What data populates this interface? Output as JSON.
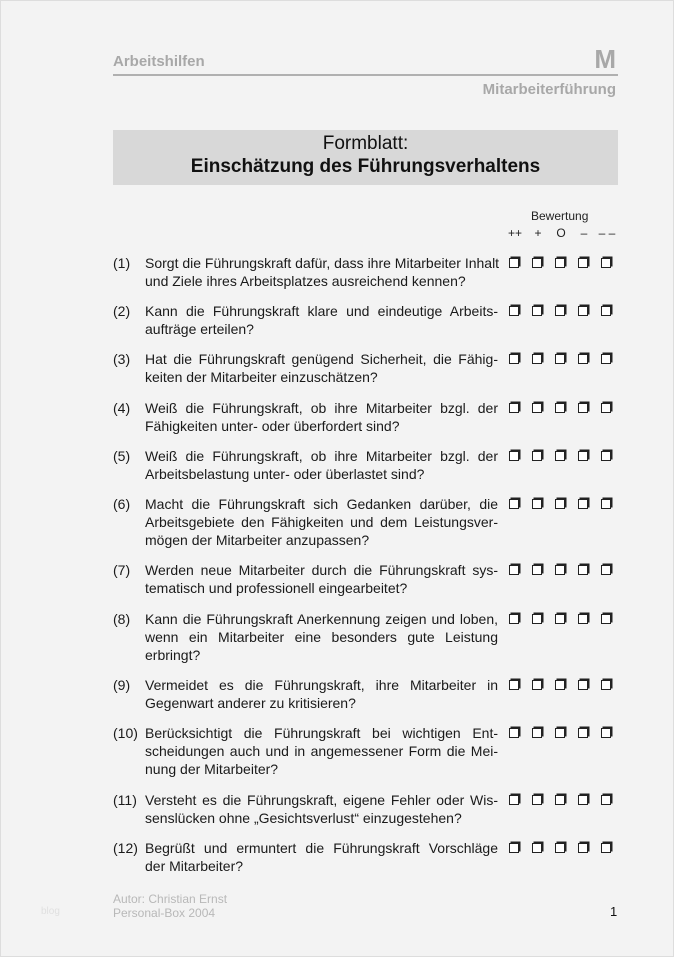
{
  "header": {
    "section": "Arbeitshilfen",
    "letter": "M",
    "subsection": "Mitarbeiterführung"
  },
  "title": {
    "line1": "Formblatt:",
    "line2": "Einschätzung des Führungsverhaltens"
  },
  "rating": {
    "label": "Bewertung",
    "scale": [
      "++",
      "+",
      "O",
      "–",
      "– –"
    ]
  },
  "questions": [
    {
      "num": "(1)",
      "lines": [
        "Sorgt die Führungskraft dafür, dass ihre Mitarbeiter Inhalt",
        "und Ziele ihres Arbeitsplatzes ausreichend kennen?"
      ]
    },
    {
      "num": "(2)",
      "lines": [
        "Kann die Führungskraft klare und eindeutige Arbeits-",
        "aufträge erteilen?"
      ]
    },
    {
      "num": "(3)",
      "lines": [
        "Hat die Führungskraft genügend Sicherheit, die Fähig-",
        "keiten der Mitarbeiter einzuschätzen?"
      ]
    },
    {
      "num": "(4)",
      "lines": [
        "Weiß die Führungskraft, ob ihre Mitarbeiter bzgl. der",
        "Fähigkeiten unter- oder überfordert sind?"
      ]
    },
    {
      "num": "(5)",
      "lines": [
        "Weiß die Führungskraft, ob ihre Mitarbeiter bzgl. der",
        "Arbeitsbelastung unter- oder überlastet sind?"
      ]
    },
    {
      "num": "(6)",
      "lines": [
        "Macht die Führungskraft sich Gedanken darüber, die",
        "Arbeitsgebiete den Fähigkeiten und dem Leistungsver-",
        "mögen der Mitarbeiter anzupassen?"
      ]
    },
    {
      "num": "(7)",
      "lines": [
        "Werden neue Mitarbeiter durch die Führungskraft sys-",
        "tematisch und professionell eingearbeitet?"
      ]
    },
    {
      "num": "(8)",
      "lines": [
        "Kann die Führungskraft Anerkennung zeigen und loben,",
        "wenn ein Mitarbeiter eine besonders gute Leistung",
        "erbringt?"
      ]
    },
    {
      "num": "(9)",
      "lines": [
        "Vermeidet es die Führungskraft, ihre Mitarbeiter in",
        "Gegenwart anderer zu kritisieren?"
      ]
    },
    {
      "num": "(10)",
      "lines": [
        "Berücksichtigt die Führungskraft bei wichtigen Ent-",
        "scheidungen auch und in angemessener Form die Mei-",
        "nung der Mitarbeiter?"
      ]
    },
    {
      "num": "(11)",
      "lines": [
        "Versteht es die Führungskraft, eigene Fehler oder Wis-",
        "senslücken ohne „Gesichtsverlust“ einzugestehen?"
      ]
    },
    {
      "num": "(12)",
      "lines": [
        "Begrüßt und ermuntert die Führungskraft Vorschläge",
        "der Mitarbeiter?"
      ]
    }
  ],
  "footer": {
    "author": "Autor: Christian Ernst",
    "source": "Personal-Box 2004",
    "page": "1"
  },
  "watermark": "blog"
}
